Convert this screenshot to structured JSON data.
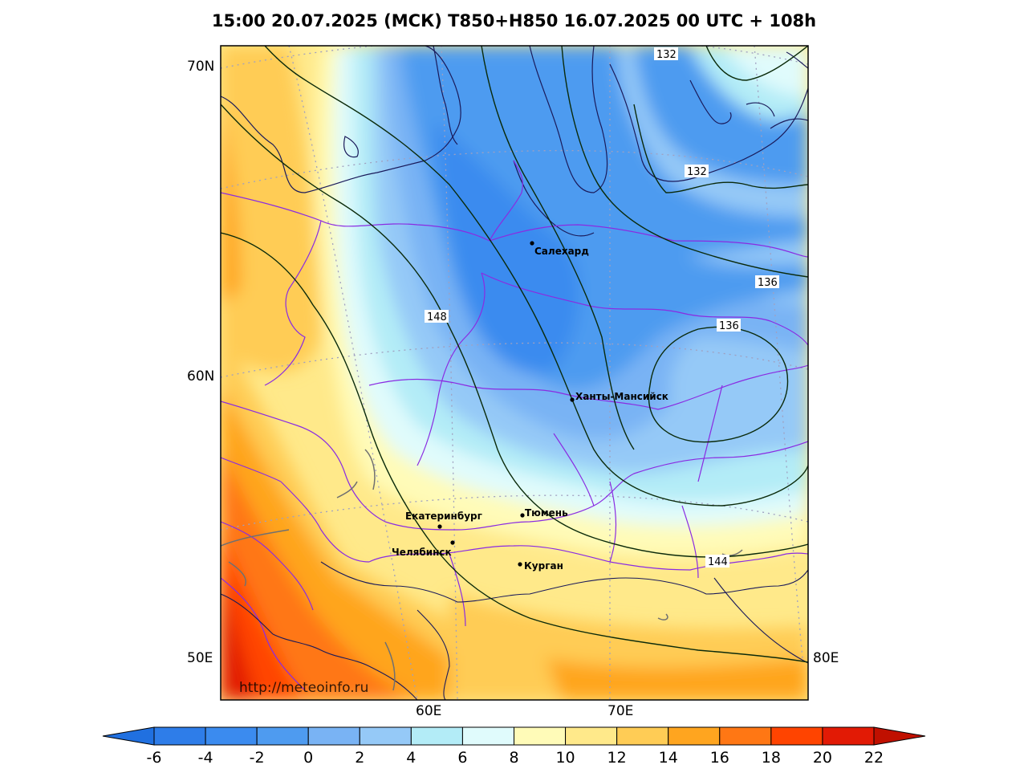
{
  "title": "15:00 20.07.2025 (МСК) T850+H850 16.07.2025 00 UTC + 108h",
  "watermark": "http://meteoinfo.ru",
  "lat_labels": [
    "70N",
    "60N",
    "50E"
  ],
  "lon_labels": [
    "60E",
    "70E",
    "80E"
  ],
  "cities": [
    {
      "name": "Салехард"
    },
    {
      "name": "Ханты-Мансийск"
    },
    {
      "name": "Екатеринбург"
    },
    {
      "name": "Тюмень"
    },
    {
      "name": "Челябинск"
    },
    {
      "name": "Курган"
    }
  ],
  "contour_labels": [
    "132",
    "132",
    "136",
    "136",
    "148",
    "144"
  ],
  "colorbar": {
    "ticks": [
      "-6",
      "-4",
      "-2",
      "0",
      "2",
      "4",
      "6",
      "8",
      "10",
      "12",
      "14",
      "16",
      "18",
      "20",
      "22"
    ],
    "colors": [
      "#2e7de9",
      "#3b8bef",
      "#4e9bf0",
      "#79b3f4",
      "#95c9f7",
      "#b3ecf7",
      "#e0fbfc",
      "#fffbb8",
      "#ffe98a",
      "#ffcc55",
      "#ffa51f",
      "#ff7714",
      "#ff4400",
      "#e21a05"
    ],
    "under_color": "#2070e0",
    "over_color": "#c01000"
  }
}
